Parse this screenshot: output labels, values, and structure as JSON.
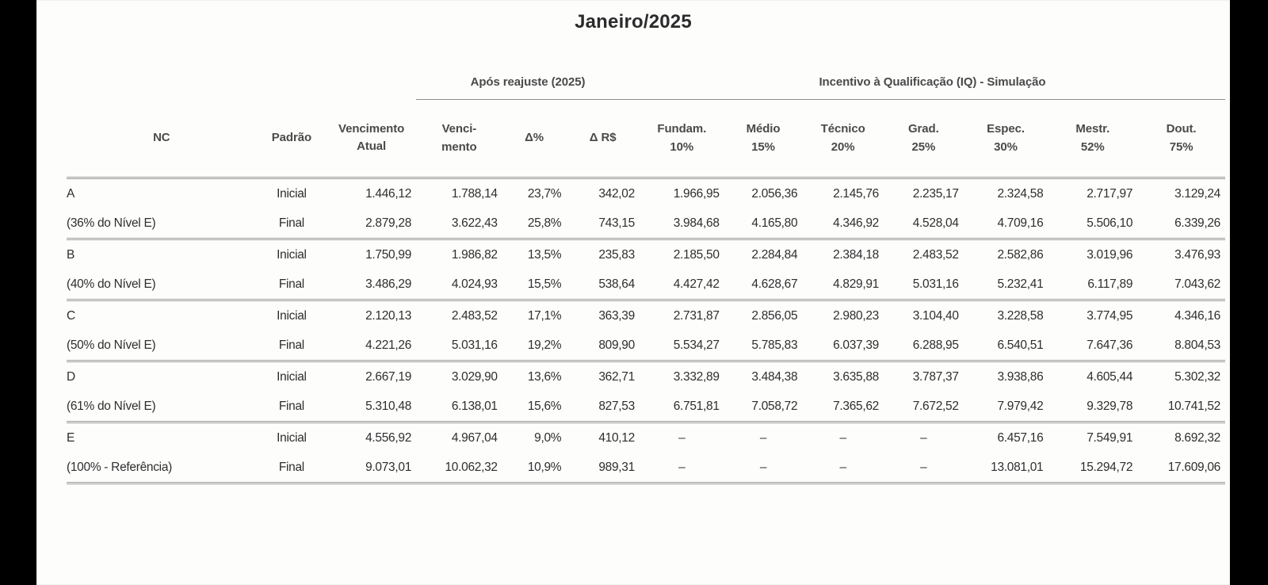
{
  "title": "Janeiro/2025",
  "table": {
    "group_headers": [
      "Após reajuste (2025)",
      "Incentivo à Qualificação (IQ) - Simulação"
    ],
    "columns": [
      {
        "lines": [
          "NC"
        ]
      },
      {
        "lines": [
          "Padrão"
        ]
      },
      {
        "lines": [
          "Vencimento",
          "Atual"
        ]
      },
      {
        "lines": [
          "Venci-",
          "mento"
        ]
      },
      {
        "lines": [
          "Δ%"
        ]
      },
      {
        "lines": [
          "Δ R$"
        ]
      },
      {
        "lines": [
          "Fundam.",
          "10%"
        ]
      },
      {
        "lines": [
          "Médio",
          "15%"
        ]
      },
      {
        "lines": [
          "Técnico",
          "20%"
        ]
      },
      {
        "lines": [
          "Grad.",
          "25%"
        ]
      },
      {
        "lines": [
          "Espec.",
          "30%"
        ]
      },
      {
        "lines": [
          "Mestr.",
          "52%"
        ]
      },
      {
        "lines": [
          "Dout.",
          "75%"
        ]
      }
    ],
    "rows": [
      {
        "nc": "A",
        "padrao": "Inicial",
        "vencimento_atual": "1.446,12",
        "vencimento": "1.788,14",
        "delta_pct": "23,7%",
        "delta_rs": "342,02",
        "iq": [
          "1.966,95",
          "2.056,36",
          "2.145,76",
          "2.235,17",
          "2.324,58",
          "2.717,97",
          "3.129,24"
        ]
      },
      {
        "nc": "(36% do Nível E)",
        "padrao": "Final",
        "vencimento_atual": "2.879,28",
        "vencimento": "3.622,43",
        "delta_pct": "25,8%",
        "delta_rs": "743,15",
        "iq": [
          "3.984,68",
          "4.165,80",
          "4.346,92",
          "4.528,04",
          "4.709,16",
          "5.506,10",
          "6.339,26"
        ]
      },
      {
        "nc": "B",
        "padrao": "Inicial",
        "vencimento_atual": "1.750,99",
        "vencimento": "1.986,82",
        "delta_pct": "13,5%",
        "delta_rs": "235,83",
        "iq": [
          "2.185,50",
          "2.284,84",
          "2.384,18",
          "2.483,52",
          "2.582,86",
          "3.019,96",
          "3.476,93"
        ]
      },
      {
        "nc": "(40% do Nível E)",
        "padrao": "Final",
        "vencimento_atual": "3.486,29",
        "vencimento": "4.024,93",
        "delta_pct": "15,5%",
        "delta_rs": "538,64",
        "iq": [
          "4.427,42",
          "4.628,67",
          "4.829,91",
          "5.031,16",
          "5.232,41",
          "6.117,89",
          "7.043,62"
        ]
      },
      {
        "nc": "C",
        "padrao": "Inicial",
        "vencimento_atual": "2.120,13",
        "vencimento": "2.483,52",
        "delta_pct": "17,1%",
        "delta_rs": "363,39",
        "iq": [
          "2.731,87",
          "2.856,05",
          "2.980,23",
          "3.104,40",
          "3.228,58",
          "3.774,95",
          "4.346,16"
        ]
      },
      {
        "nc": "(50% do Nível E)",
        "padrao": "Final",
        "vencimento_atual": "4.221,26",
        "vencimento": "5.031,16",
        "delta_pct": "19,2%",
        "delta_rs": "809,90",
        "iq": [
          "5.534,27",
          "5.785,83",
          "6.037,39",
          "6.288,95",
          "6.540,51",
          "7.647,36",
          "8.804,53"
        ]
      },
      {
        "nc": "D",
        "padrao": "Inicial",
        "vencimento_atual": "2.667,19",
        "vencimento": "3.029,90",
        "delta_pct": "13,6%",
        "delta_rs": "362,71",
        "iq": [
          "3.332,89",
          "3.484,38",
          "3.635,88",
          "3.787,37",
          "3.938,86",
          "4.605,44",
          "5.302,32"
        ]
      },
      {
        "nc": "(61% do Nível E)",
        "padrao": "Final",
        "vencimento_atual": "5.310,48",
        "vencimento": "6.138,01",
        "delta_pct": "15,6%",
        "delta_rs": "827,53",
        "iq": [
          "6.751,81",
          "7.058,72",
          "7.365,62",
          "7.672,52",
          "7.979,42",
          "9.329,78",
          "10.741,52"
        ]
      },
      {
        "nc": "E",
        "padrao": "Inicial",
        "vencimento_atual": "4.556,92",
        "vencimento": "4.967,04",
        "delta_pct": "9,0%",
        "delta_rs": "410,12",
        "iq": [
          "–",
          "–",
          "–",
          "–",
          "6.457,16",
          "7.549,91",
          "8.692,32"
        ]
      },
      {
        "nc": "(100% - Referência)",
        "padrao": "Final",
        "vencimento_atual": "9.073,01",
        "vencimento": "10.062,32",
        "delta_pct": "10,9%",
        "delta_rs": "989,31",
        "iq": [
          "–",
          "–",
          "–",
          "–",
          "13.081,01",
          "15.294,72",
          "17.609,06"
        ]
      }
    ]
  }
}
